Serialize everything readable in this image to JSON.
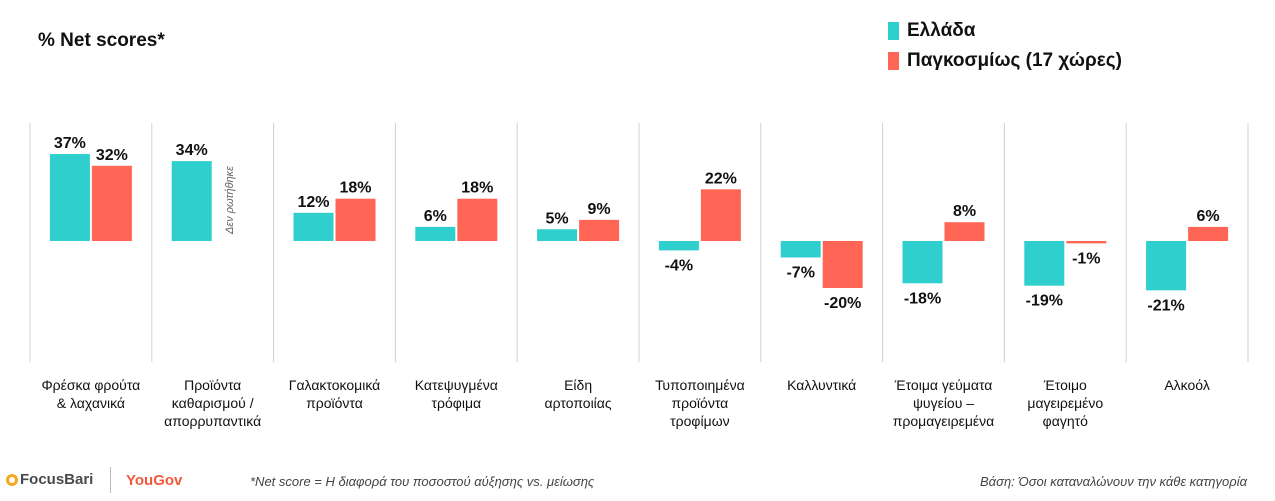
{
  "title": "% Net scores*",
  "legend": [
    {
      "name": "Ελλάδα",
      "color": "#2ecfcc"
    },
    {
      "name": "Παγκοσμίως (17 χώρες)",
      "color": "#ff6655"
    }
  ],
  "not_asked_note": "Δεν ρωτήθηκε",
  "footnote": "*Net score = Η διαφορά του ποσοστού αύξησης vs. μείωσης",
  "base_note": "Βάση: Όσοι καταναλώνουν την κάθε κατηγορία",
  "logos": {
    "focusbari": "FocusBari",
    "yougov": "YouGov"
  },
  "chart_data": {
    "type": "bar",
    "categories": [
      "Φρέσκα φρούτα & λαχανικά",
      "Προϊόντα καθαρισμού / απορρυπαντικά",
      "Γαλακτοκομικά προϊόντα",
      "Κατεψυγμένα τρόφιμα",
      "Είδη αρτοποιίας",
      "Τυποποιημένα προϊόντα τροφίμων",
      "Καλλυντικά",
      "Έτοιμα γεύματα ψυγείου – προμαγειρεμένα",
      "Έτοιμο μαγειρεμένο φαγητό",
      "Αλκοόλ"
    ],
    "category_lines": [
      [
        "Φρέσκα φρούτα",
        "& λαχανικά"
      ],
      [
        "Προϊόντα",
        "καθαρισμού /",
        "απορρυπαντικά"
      ],
      [
        "Γαλακτοκομικά",
        "προϊόντα"
      ],
      [
        "Κατεψυγμένα",
        "τρόφιμα"
      ],
      [
        "Είδη",
        "αρτοποιίας"
      ],
      [
        "Τυποποιημένα",
        "προϊόντα",
        "τροφίμων"
      ],
      [
        "Καλλυντικά"
      ],
      [
        "Έτοιμα γεύματα",
        "ψυγείου –",
        "προμαγειρεμένα"
      ],
      [
        "Έτοιμο",
        "μαγειρεμένο",
        "φαγητό"
      ],
      [
        "Αλκοόλ"
      ]
    ],
    "series": [
      {
        "name": "Ελλάδα",
        "color": "#2ecfcc",
        "values": [
          37,
          34,
          12,
          6,
          5,
          -4,
          -7,
          -18,
          -19,
          -21
        ]
      },
      {
        "name": "Παγκοσμίως (17 χώρες)",
        "color": "#ff6655",
        "values": [
          32,
          null,
          18,
          18,
          9,
          22,
          -20,
          8,
          -1,
          6
        ]
      }
    ],
    "value_suffix": "%",
    "grid": false,
    "legend_position": "top-right"
  }
}
